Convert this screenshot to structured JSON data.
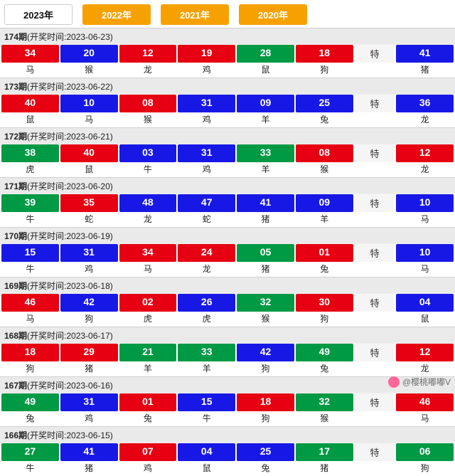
{
  "tabs": [
    {
      "label": "2023年",
      "active": true
    },
    {
      "label": "2022年",
      "active": false
    },
    {
      "label": "2021年",
      "active": false
    },
    {
      "label": "2020年",
      "active": false
    }
  ],
  "te_label": "特",
  "watermark": "@樱桃嘟嘟V",
  "colors": {
    "red": "#e60012",
    "blue": "#1818e6",
    "green": "#009944",
    "tab_inactive": "#f7a100",
    "bg": "#eeeeee"
  },
  "periods": [
    {
      "period": "174",
      "head": "174期(开奖时间:2023-06-23)",
      "balls": [
        {
          "n": "34",
          "z": "马",
          "c": "red"
        },
        {
          "n": "20",
          "z": "猴",
          "c": "blue"
        },
        {
          "n": "12",
          "z": "龙",
          "c": "red"
        },
        {
          "n": "19",
          "z": "鸡",
          "c": "red"
        },
        {
          "n": "28",
          "z": "鼠",
          "c": "green"
        },
        {
          "n": "18",
          "z": "狗",
          "c": "red"
        }
      ],
      "special": {
        "n": "41",
        "z": "猪",
        "c": "blue"
      }
    },
    {
      "period": "173",
      "head": "173期(开奖时间:2023-06-22)",
      "balls": [
        {
          "n": "40",
          "z": "鼠",
          "c": "red"
        },
        {
          "n": "10",
          "z": "马",
          "c": "blue"
        },
        {
          "n": "08",
          "z": "猴",
          "c": "red"
        },
        {
          "n": "31",
          "z": "鸡",
          "c": "blue"
        },
        {
          "n": "09",
          "z": "羊",
          "c": "blue"
        },
        {
          "n": "25",
          "z": "兔",
          "c": "blue"
        }
      ],
      "special": {
        "n": "36",
        "z": "龙",
        "c": "blue"
      }
    },
    {
      "period": "172",
      "head": "172期(开奖时间:2023-06-21)",
      "balls": [
        {
          "n": "38",
          "z": "虎",
          "c": "green"
        },
        {
          "n": "40",
          "z": "鼠",
          "c": "red"
        },
        {
          "n": "03",
          "z": "牛",
          "c": "blue"
        },
        {
          "n": "31",
          "z": "鸡",
          "c": "blue"
        },
        {
          "n": "33",
          "z": "羊",
          "c": "green"
        },
        {
          "n": "08",
          "z": "猴",
          "c": "red"
        }
      ],
      "special": {
        "n": "12",
        "z": "龙",
        "c": "red"
      }
    },
    {
      "period": "171",
      "head": "171期(开奖时间:2023-06-20)",
      "balls": [
        {
          "n": "39",
          "z": "牛",
          "c": "green"
        },
        {
          "n": "35",
          "z": "蛇",
          "c": "red"
        },
        {
          "n": "48",
          "z": "龙",
          "c": "blue"
        },
        {
          "n": "47",
          "z": "蛇",
          "c": "blue"
        },
        {
          "n": "41",
          "z": "猪",
          "c": "blue"
        },
        {
          "n": "09",
          "z": "羊",
          "c": "blue"
        }
      ],
      "special": {
        "n": "10",
        "z": "马",
        "c": "blue"
      }
    },
    {
      "period": "170",
      "head": "170期(开奖时间:2023-06-19)",
      "balls": [
        {
          "n": "15",
          "z": "牛",
          "c": "blue"
        },
        {
          "n": "31",
          "z": "鸡",
          "c": "blue"
        },
        {
          "n": "34",
          "z": "马",
          "c": "red"
        },
        {
          "n": "24",
          "z": "龙",
          "c": "red"
        },
        {
          "n": "05",
          "z": "猪",
          "c": "green"
        },
        {
          "n": "01",
          "z": "兔",
          "c": "red"
        }
      ],
      "special": {
        "n": "10",
        "z": "马",
        "c": "blue"
      }
    },
    {
      "period": "169",
      "head": "169期(开奖时间:2023-06-18)",
      "balls": [
        {
          "n": "46",
          "z": "马",
          "c": "red"
        },
        {
          "n": "42",
          "z": "狗",
          "c": "blue"
        },
        {
          "n": "02",
          "z": "虎",
          "c": "red"
        },
        {
          "n": "26",
          "z": "虎",
          "c": "blue"
        },
        {
          "n": "32",
          "z": "猴",
          "c": "green"
        },
        {
          "n": "30",
          "z": "狗",
          "c": "red"
        }
      ],
      "special": {
        "n": "04",
        "z": "鼠",
        "c": "blue"
      }
    },
    {
      "period": "168",
      "head": "168期(开奖时间:2023-06-17)",
      "balls": [
        {
          "n": "18",
          "z": "狗",
          "c": "red"
        },
        {
          "n": "29",
          "z": "猪",
          "c": "red"
        },
        {
          "n": "21",
          "z": "羊",
          "c": "green"
        },
        {
          "n": "33",
          "z": "羊",
          "c": "green"
        },
        {
          "n": "42",
          "z": "狗",
          "c": "blue"
        },
        {
          "n": "49",
          "z": "兔",
          "c": "green"
        }
      ],
      "special": {
        "n": "12",
        "z": "龙",
        "c": "red"
      }
    },
    {
      "period": "167",
      "head": "167期(开奖时间:2023-06-16)",
      "balls": [
        {
          "n": "49",
          "z": "兔",
          "c": "green"
        },
        {
          "n": "31",
          "z": "鸡",
          "c": "blue"
        },
        {
          "n": "01",
          "z": "兔",
          "c": "red"
        },
        {
          "n": "15",
          "z": "牛",
          "c": "blue"
        },
        {
          "n": "18",
          "z": "狗",
          "c": "red"
        },
        {
          "n": "32",
          "z": "猴",
          "c": "green"
        }
      ],
      "special": {
        "n": "46",
        "z": "马",
        "c": "red"
      }
    },
    {
      "period": "166",
      "head": "166期(开奖时间:2023-06-15)",
      "balls": [
        {
          "n": "27",
          "z": "牛",
          "c": "green"
        },
        {
          "n": "41",
          "z": "猪",
          "c": "blue"
        },
        {
          "n": "07",
          "z": "鸡",
          "c": "red"
        },
        {
          "n": "04",
          "z": "鼠",
          "c": "blue"
        },
        {
          "n": "25",
          "z": "兔",
          "c": "blue"
        },
        {
          "n": "17",
          "z": "猪",
          "c": "green"
        }
      ],
      "special": {
        "n": "06",
        "z": "狗",
        "c": "green"
      }
    }
  ]
}
